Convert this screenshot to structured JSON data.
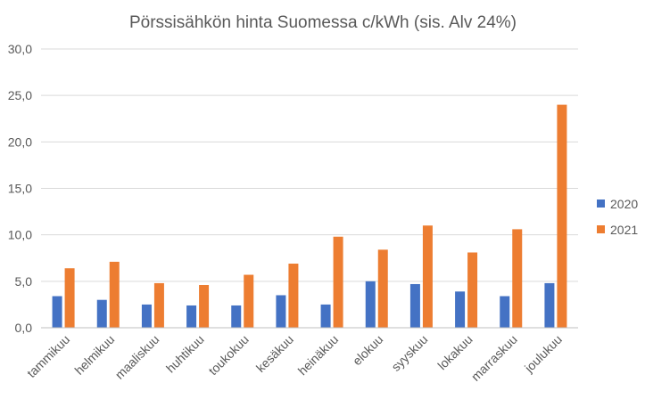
{
  "chart_data": {
    "type": "bar",
    "title": "Pörssisähkön hinta Suomessa c/kWh (sis. Alv 24%)",
    "categories": [
      "tammikuu",
      "helmikuu",
      "maaliskuu",
      "huhtikuu",
      "toukokuu",
      "kesäkuu",
      "heinäkuu",
      "elokuu",
      "syyskuu",
      "lokakuu",
      "marraskuu",
      "joulukuu"
    ],
    "series": [
      {
        "name": "2020",
        "color": "#4472c4",
        "values": [
          3.4,
          3.0,
          2.5,
          2.4,
          2.4,
          3.5,
          2.5,
          5.0,
          4.7,
          3.9,
          3.4,
          4.8
        ]
      },
      {
        "name": "2021",
        "color": "#ed7d31",
        "values": [
          6.4,
          7.1,
          4.8,
          4.6,
          5.7,
          6.9,
          9.8,
          8.4,
          11.0,
          8.1,
          10.6,
          24.0
        ]
      }
    ],
    "yticks": [
      "0,0",
      "5,0",
      "10,0",
      "15,0",
      "20,0",
      "25,0",
      "30,0"
    ],
    "ylim": [
      0,
      30
    ],
    "grid": true,
    "legend_position": "right"
  }
}
